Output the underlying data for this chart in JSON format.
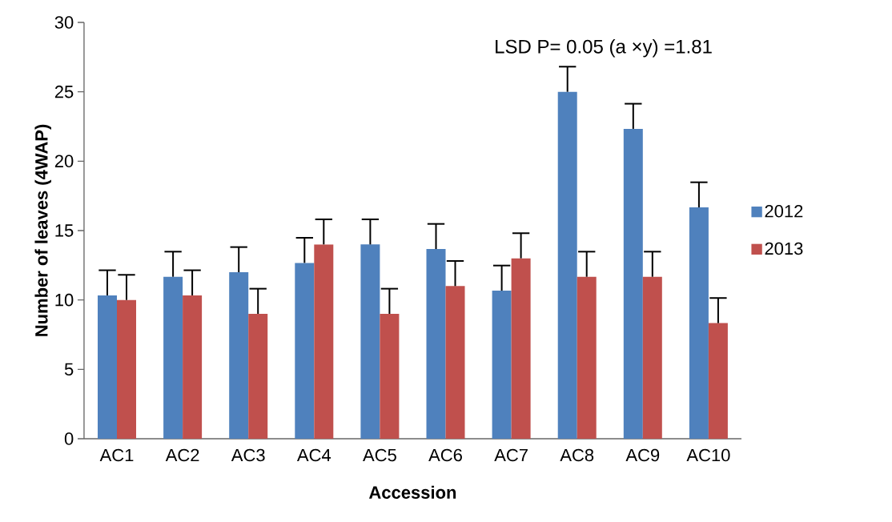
{
  "chart_data": {
    "type": "bar",
    "xlabel": "Accession",
    "ylabel": "Number of leaves (4WAP)",
    "categories": [
      "AC1",
      "AC2",
      "AC3",
      "AC4",
      "AC5",
      "AC6",
      "AC7",
      "AC8",
      "AC9",
      "AC10"
    ],
    "series": [
      {
        "name": "2012",
        "color": "#4f81bd",
        "values": [
          10.33,
          11.67,
          12.0,
          12.67,
          14.0,
          13.67,
          10.67,
          25.0,
          22.33,
          16.67
        ],
        "errors": [
          [
            10.33,
            12.14
          ],
          [
            11.67,
            13.48
          ],
          [
            12.0,
            13.81
          ],
          [
            12.67,
            14.48
          ],
          [
            14.0,
            15.81
          ],
          [
            13.67,
            15.48
          ],
          [
            10.67,
            12.48
          ],
          [
            25.0,
            26.81
          ],
          [
            22.33,
            24.14
          ],
          [
            16.67,
            18.48
          ]
        ]
      },
      {
        "name": "2013",
        "color": "#c0504d",
        "values": [
          10.0,
          10.33,
          9.0,
          14.0,
          9.0,
          11.0,
          13.0,
          11.67,
          11.67,
          8.33
        ],
        "errors": [
          [
            10.0,
            11.81
          ],
          [
            10.33,
            12.14
          ],
          [
            9.0,
            10.81
          ],
          [
            14.0,
            15.81
          ],
          [
            9.0,
            10.81
          ],
          [
            11.0,
            12.81
          ],
          [
            13.0,
            14.81
          ],
          [
            11.67,
            13.48
          ],
          [
            11.67,
            13.48
          ],
          [
            8.33,
            10.14
          ]
        ]
      }
    ],
    "ylim": [
      0,
      30
    ],
    "yticks": [
      0,
      5,
      10,
      15,
      20,
      25,
      30
    ],
    "legend": "right",
    "grid": false,
    "annotations": [
      "LSD P= 0.05 (a ×y) =1.81"
    ]
  }
}
